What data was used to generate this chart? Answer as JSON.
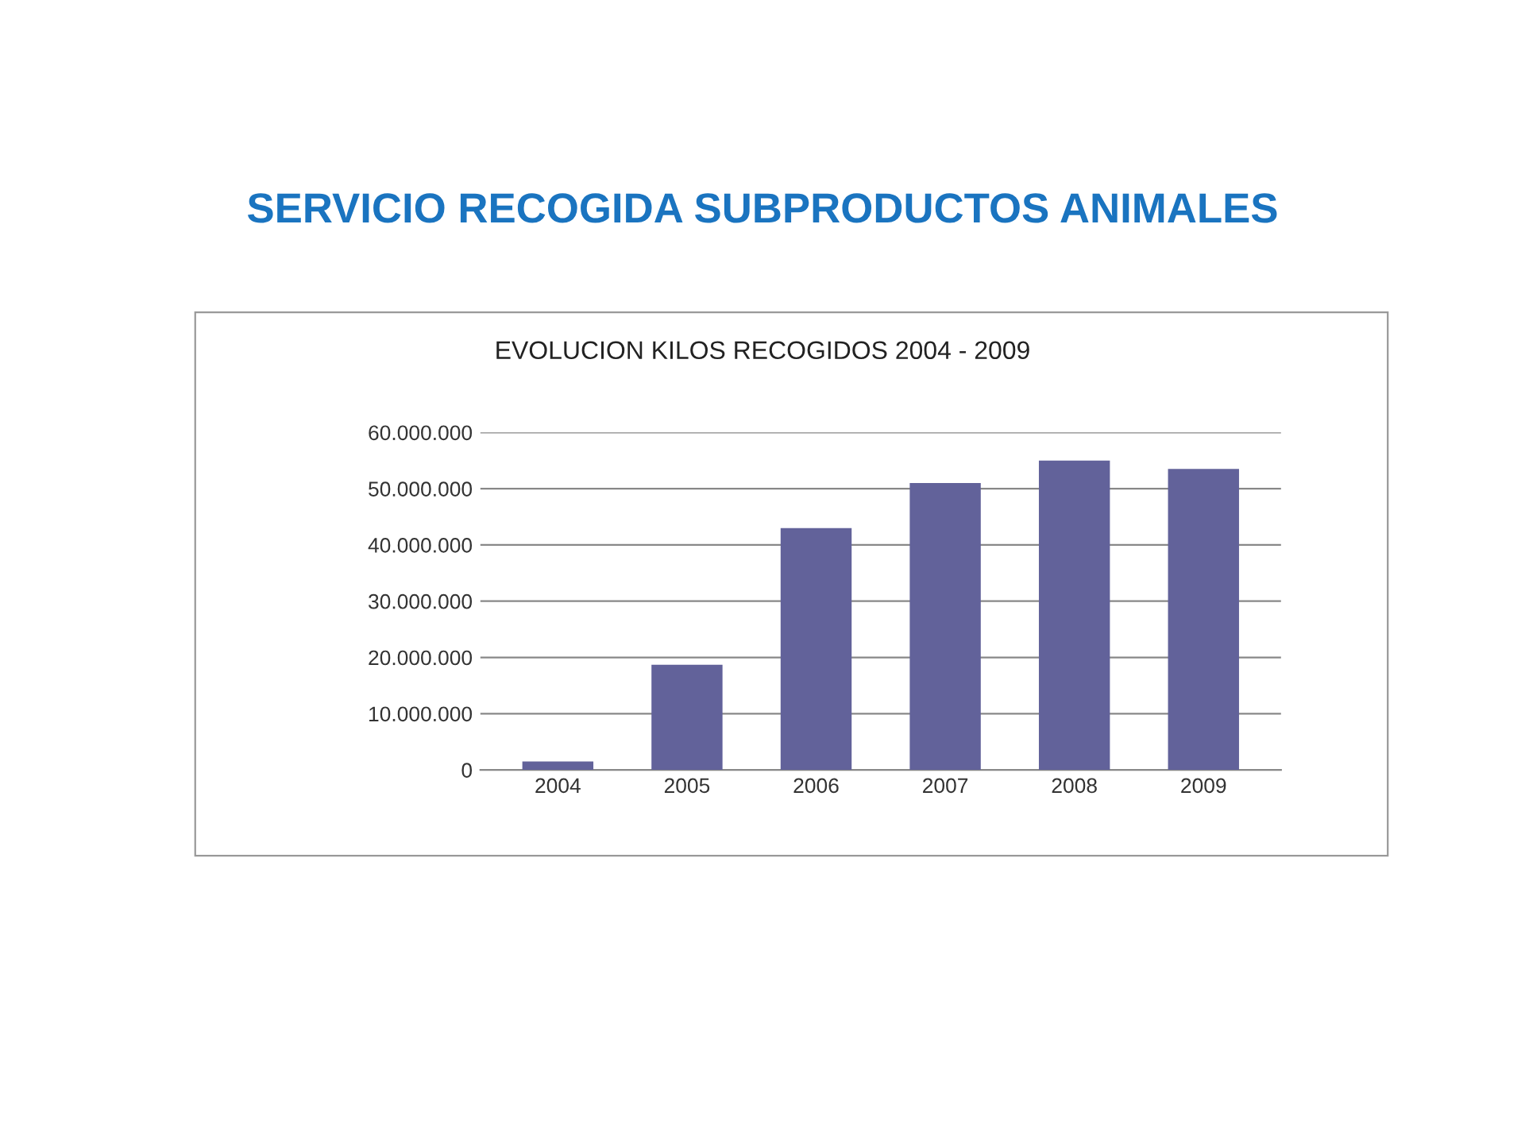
{
  "chart_data": {
    "type": "bar",
    "title": "SERVICIO RECOGIDA SUBPRODUCTOS ANIMALES",
    "subtitle": "EVOLUCION KILOS RECOGIDOS 2004 - 2009",
    "categories": [
      "2004",
      "2005",
      "2006",
      "2007",
      "2008",
      "2009"
    ],
    "values": [
      1500000,
      18700000,
      43000000,
      51000000,
      55000000,
      53500000
    ],
    "color": "#62629a",
    "ylim": [
      0,
      60000000
    ],
    "yticks": [
      {
        "value": 0,
        "label": "0"
      },
      {
        "value": 10000000,
        "label": "10.000.000"
      },
      {
        "value": 20000000,
        "label": "20.000.000"
      },
      {
        "value": 30000000,
        "label": "30.000.000"
      },
      {
        "value": 40000000,
        "label": "40.000.000"
      },
      {
        "value": 50000000,
        "label": "50.000.000"
      },
      {
        "value": 60000000,
        "label": "60.000.000"
      }
    ],
    "grid": "y"
  }
}
